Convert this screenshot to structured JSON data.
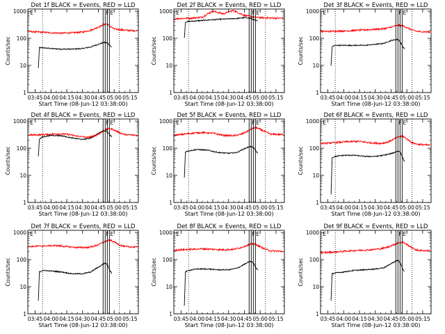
{
  "window": {
    "background": "#ffffff"
  },
  "colors": {
    "events": "#000000",
    "lld": "#ff0000",
    "axis": "#000000"
  },
  "common": {
    "ylabel": "Counts/sec",
    "xlabel": "Start Time (08-Jun-12 03:38:00)",
    "y_ticks": [
      "1",
      "10",
      "100",
      "1000"
    ],
    "y_scale": "log",
    "ylim": [
      1,
      1200
    ],
    "x_ticks": [
      "03:45",
      "04:00",
      "04:15",
      "04:30",
      "04:45",
      "05:00",
      "05:15"
    ],
    "x_tick_minutes": [
      225,
      240,
      255,
      270,
      285,
      300,
      315
    ],
    "xlim_minutes": [
      218,
      323
    ],
    "markers": [
      {
        "label": "E",
        "minute": 219.5
      },
      {
        "label": "F",
        "minute": 291.5
      },
      {
        "label": "E",
        "minute": 295.5
      }
    ]
  },
  "chart_data": [
    {
      "type": "line",
      "title": "Det 1f BLACK = Events, RED = LLD",
      "series": [
        {
          "name": "Events",
          "color": "#000000",
          "x": [
            228,
            229,
            232,
            240,
            250,
            260,
            270,
            278,
            282,
            286,
            290,
            292,
            294,
            296,
            298
          ],
          "y": [
            8,
            45,
            45,
            42,
            40,
            40,
            42,
            48,
            55,
            62,
            70,
            70,
            65,
            55,
            45
          ]
        },
        {
          "name": "LLD",
          "color": "#ff0000",
          "x": [
            218,
            222,
            230,
            240,
            250,
            260,
            270,
            278,
            285,
            290,
            293,
            296,
            300,
            310,
            322
          ],
          "y": [
            180,
            175,
            170,
            160,
            155,
            160,
            170,
            200,
            260,
            320,
            340,
            280,
            220,
            200,
            190
          ]
        }
      ]
    },
    {
      "type": "line",
      "title": "Det 2f BLACK = Events, RED = LLD",
      "series": [
        {
          "name": "Events",
          "color": "#000000",
          "x": [
            228,
            229,
            232,
            240,
            250,
            260,
            270,
            278,
            282,
            286,
            290,
            292,
            294,
            296,
            298
          ],
          "y": [
            100,
            400,
            420,
            440,
            470,
            500,
            520,
            540,
            560,
            580,
            560,
            520,
            480,
            450,
            430
          ]
        },
        {
          "name": "LLD",
          "color": "#ff0000",
          "x": [
            218,
            225,
            235,
            245,
            250,
            255,
            260,
            265,
            270,
            275,
            280,
            285,
            290,
            295,
            300,
            310,
            322
          ],
          "y": [
            520,
            540,
            560,
            600,
            800,
            1000,
            900,
            800,
            950,
            1050,
            850,
            700,
            650,
            600,
            580,
            560,
            550
          ]
        }
      ]
    },
    {
      "type": "line",
      "title": "Det 3f BLACK = Events, RED = LLD",
      "series": [
        {
          "name": "Events",
          "color": "#000000",
          "x": [
            228,
            229,
            232,
            240,
            250,
            260,
            270,
            278,
            282,
            286,
            290,
            292,
            294,
            296,
            298
          ],
          "y": [
            10,
            50,
            55,
            55,
            55,
            55,
            60,
            65,
            75,
            85,
            90,
            90,
            70,
            50,
            40
          ]
        },
        {
          "name": "LLD",
          "color": "#ff0000",
          "x": [
            218,
            225,
            235,
            245,
            255,
            265,
            275,
            282,
            288,
            292,
            296,
            300,
            305,
            310,
            322
          ],
          "y": [
            180,
            180,
            185,
            190,
            200,
            210,
            220,
            240,
            280,
            300,
            290,
            250,
            200,
            180,
            170
          ]
        }
      ]
    },
    {
      "type": "line",
      "title": "Det 4f BLACK = Events, RED = LLD",
      "series": [
        {
          "name": "Events",
          "color": "#000000",
          "x": [
            228,
            229,
            232,
            240,
            250,
            260,
            270,
            278,
            282,
            286,
            290,
            292,
            294,
            296,
            298
          ],
          "y": [
            50,
            220,
            260,
            300,
            290,
            240,
            210,
            240,
            300,
            380,
            450,
            430,
            380,
            300,
            260
          ]
        },
        {
          "name": "LLD",
          "color": "#ff0000",
          "x": [
            218,
            225,
            235,
            245,
            255,
            265,
            275,
            282,
            288,
            292,
            296,
            300,
            305,
            310,
            322
          ],
          "y": [
            310,
            310,
            320,
            340,
            330,
            280,
            250,
            290,
            380,
            480,
            540,
            470,
            380,
            320,
            300
          ]
        }
      ]
    },
    {
      "type": "line",
      "title": "Det 5f BLACK = Events, RED = LLD",
      "series": [
        {
          "name": "Events",
          "color": "#000000",
          "x": [
            228,
            229,
            232,
            240,
            250,
            260,
            270,
            278,
            282,
            286,
            290,
            292,
            294,
            296,
            298
          ],
          "y": [
            8,
            75,
            80,
            90,
            85,
            70,
            65,
            70,
            85,
            100,
            115,
            115,
            100,
            80,
            60
          ]
        },
        {
          "name": "LLD",
          "color": "#ff0000",
          "x": [
            218,
            225,
            235,
            245,
            255,
            265,
            275,
            282,
            288,
            292,
            296,
            300,
            305,
            310,
            322
          ],
          "y": [
            300,
            320,
            360,
            380,
            360,
            300,
            290,
            330,
            420,
            520,
            580,
            500,
            400,
            330,
            320
          ]
        }
      ]
    },
    {
      "type": "line",
      "title": "Det 6f BLACK = Events, RED = LLD",
      "series": [
        {
          "name": "Events",
          "color": "#000000",
          "x": [
            228,
            229,
            232,
            240,
            250,
            260,
            270,
            278,
            282,
            286,
            290,
            292,
            294,
            296,
            298
          ],
          "y": [
            2,
            45,
            50,
            55,
            55,
            50,
            50,
            55,
            60,
            65,
            75,
            80,
            70,
            45,
            30
          ]
        },
        {
          "name": "LLD",
          "color": "#ff0000",
          "x": [
            218,
            225,
            235,
            245,
            255,
            265,
            275,
            282,
            288,
            292,
            296,
            300,
            305,
            310,
            322
          ],
          "y": [
            150,
            155,
            165,
            175,
            180,
            160,
            150,
            170,
            220,
            260,
            280,
            220,
            160,
            140,
            130
          ]
        }
      ]
    },
    {
      "type": "line",
      "title": "Det 7f BLACK = Events, RED = LLD",
      "series": [
        {
          "name": "Events",
          "color": "#000000",
          "x": [
            228,
            229,
            232,
            240,
            250,
            260,
            270,
            278,
            282,
            286,
            290,
            292,
            294,
            296,
            298
          ],
          "y": [
            3,
            35,
            40,
            38,
            35,
            30,
            30,
            35,
            45,
            55,
            70,
            75,
            60,
            40,
            30
          ]
        },
        {
          "name": "LLD",
          "color": "#ff0000",
          "x": [
            218,
            225,
            235,
            245,
            255,
            265,
            275,
            282,
            288,
            292,
            296,
            300,
            305,
            310,
            322
          ],
          "y": [
            300,
            310,
            320,
            330,
            300,
            280,
            280,
            320,
            400,
            480,
            520,
            450,
            350,
            300,
            290
          ]
        }
      ]
    },
    {
      "type": "line",
      "title": "Det 8f BLACK = Events, RED = LLD",
      "series": [
        {
          "name": "Events",
          "color": "#000000",
          "x": [
            228,
            229,
            232,
            240,
            250,
            260,
            270,
            278,
            282,
            286,
            290,
            292,
            294,
            296,
            298
          ],
          "y": [
            2,
            35,
            40,
            45,
            45,
            42,
            42,
            48,
            58,
            70,
            85,
            85,
            70,
            50,
            40
          ]
        },
        {
          "name": "LLD",
          "color": "#ff0000",
          "x": [
            218,
            225,
            235,
            245,
            255,
            265,
            275,
            282,
            288,
            292,
            296,
            300,
            305,
            310,
            322
          ],
          "y": [
            220,
            230,
            240,
            250,
            240,
            230,
            240,
            280,
            340,
            380,
            360,
            300,
            240,
            210,
            200
          ]
        }
      ]
    },
    {
      "type": "line",
      "title": "Det 9f BLACK = Events, RED = LLD",
      "series": [
        {
          "name": "Events",
          "color": "#000000",
          "x": [
            228,
            229,
            232,
            240,
            250,
            260,
            270,
            278,
            282,
            286,
            290,
            292,
            294,
            296,
            298
          ],
          "y": [
            3,
            30,
            32,
            35,
            40,
            42,
            45,
            50,
            60,
            75,
            90,
            95,
            70,
            45,
            35
          ]
        },
        {
          "name": "LLD",
          "color": "#ff0000",
          "x": [
            218,
            225,
            235,
            245,
            255,
            265,
            275,
            282,
            288,
            292,
            296,
            300,
            305,
            310,
            322
          ],
          "y": [
            180,
            185,
            195,
            210,
            220,
            230,
            250,
            290,
            360,
            420,
            440,
            360,
            270,
            220,
            210
          ]
        }
      ]
    }
  ]
}
